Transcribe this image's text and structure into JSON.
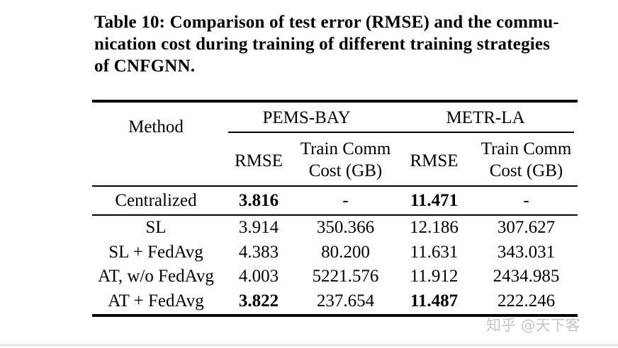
{
  "caption": {
    "line1": "Table 10: Comparison of test error (RMSE) and the commu-",
    "line2": "nication cost during training of different training strategies",
    "line3": "of CNFGNN."
  },
  "table": {
    "method_header": "Method",
    "groups": [
      "PEMS-BAY",
      "METR-LA"
    ],
    "subheaders": {
      "rmse": "RMSE",
      "cost_line1": "Train Comm",
      "cost_line2": "Cost (GB)"
    },
    "rows": [
      {
        "method": "Centralized",
        "pems_rmse": "3.816",
        "pems_cost": "-",
        "metr_rmse": "11.471",
        "metr_cost": "-"
      },
      {
        "method": "SL",
        "pems_rmse": "3.914",
        "pems_cost": "350.366",
        "metr_rmse": "12.186",
        "metr_cost": "307.627"
      },
      {
        "method": "SL + FedAvg",
        "pems_rmse": "4.383",
        "pems_cost": "80.200",
        "metr_rmse": "11.631",
        "metr_cost": "343.031"
      },
      {
        "method": "AT, w/o FedAvg",
        "pems_rmse": "4.003",
        "pems_cost": "5221.576",
        "metr_rmse": "11.912",
        "metr_cost": "2434.985"
      },
      {
        "method": "AT + FedAvg",
        "pems_rmse": "3.822",
        "pems_cost": "237.654",
        "metr_rmse": "11.487",
        "metr_cost": "222.246"
      }
    ]
  },
  "watermark": {
    "text": "知乎 @天下客"
  }
}
